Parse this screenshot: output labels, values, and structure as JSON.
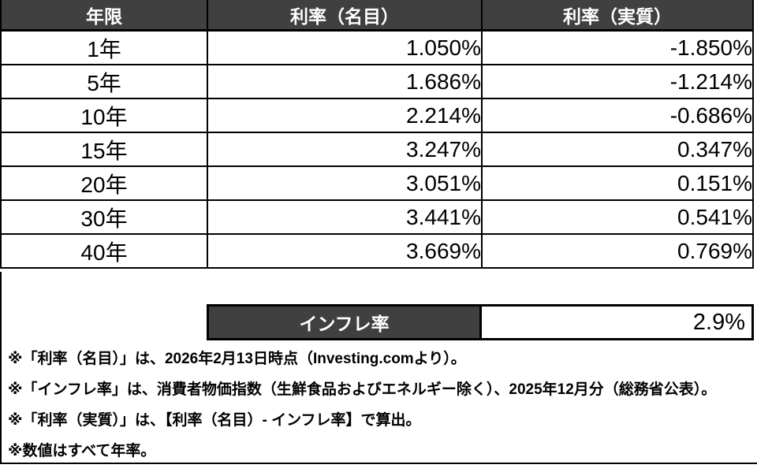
{
  "colors": {
    "header_bg": "#404040",
    "header_text": "#ffffff",
    "border": "#000000",
    "cell_bg": "#ffffff"
  },
  "table": {
    "headers": {
      "maturity": "年限",
      "nominal": "利率（名目）",
      "real": "利率（実質）"
    },
    "rows": [
      {
        "maturity": "1年",
        "nominal": "1.050%",
        "real": "-1.850%"
      },
      {
        "maturity": "5年",
        "nominal": "1.686%",
        "real": "-1.214%"
      },
      {
        "maturity": "10年",
        "nominal": "2.214%",
        "real": "-0.686%"
      },
      {
        "maturity": "15年",
        "nominal": "3.247%",
        "real": "0.347%"
      },
      {
        "maturity": "20年",
        "nominal": "3.051%",
        "real": "0.151%"
      },
      {
        "maturity": "30年",
        "nominal": "3.441%",
        "real": "0.541%"
      },
      {
        "maturity": "40年",
        "nominal": "3.669%",
        "real": "0.769%"
      }
    ]
  },
  "inflation": {
    "label": "インフレ率",
    "value": "2.9%"
  },
  "footnotes": [
    "※「利率（名目）」は、2026年2月13日時点（Investing.comより）。",
    "※「インフレ率」は、消費者物価指数（生鮮食品およびエネルギー除く）、2025年12月分（総務省公表）。",
    "※「利率（実質）」は、【利率（名目）- インフレ率】で算出。",
    "※数値はすべて年率。"
  ]
}
